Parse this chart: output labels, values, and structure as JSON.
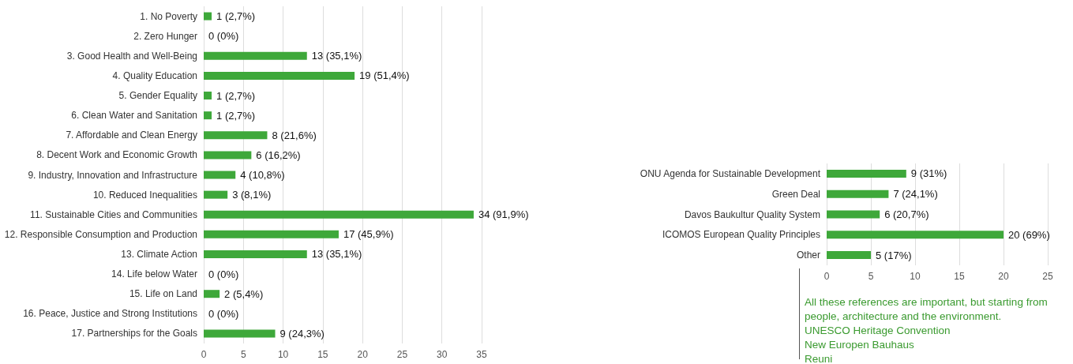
{
  "chart_data": [
    {
      "type": "bar",
      "orientation": "horizontal",
      "categories": [
        "1. No Poverty",
        "2. Zero Hunger",
        "3. Good Health and Well-Being",
        "4. Quality Education",
        "5. Gender Equality",
        "6. Clean Water and Sanitation",
        "7. Affordable and Clean Energy",
        "8. Decent Work and Economic Growth",
        "9. Industry, Innovation and Infrastructure",
        "10. Reduced Inequalities",
        "11. Sustainable Cities and Communities",
        "12. Responsible Consumption and Production",
        "13. Climate Action",
        "14. Life below Water",
        "15. Life on Land",
        "16. Peace, Justice and Strong Institutions",
        "17. Partnerships for the Goals"
      ],
      "values": [
        1,
        0,
        13,
        19,
        1,
        1,
        8,
        6,
        4,
        3,
        34,
        17,
        13,
        0,
        2,
        0,
        9
      ],
      "value_labels": [
        "1 (2,7%)",
        "0 (0%)",
        "13 (35,1%)",
        "19 (51,4%)",
        "1 (2,7%)",
        "1 (2,7%)",
        "8 (21,6%)",
        "6 (16,2%)",
        "4 (10,8%)",
        "3 (8,1%)",
        "34 (91,9%)",
        "17 (45,9%)",
        "13 (35,1%)",
        "0 (0%)",
        "2 (5,4%)",
        "0 (0%)",
        "9 (24,3%)"
      ],
      "color": "#3ea83a",
      "xlim": [
        0,
        35
      ],
      "xticks": [
        0,
        5,
        10,
        15,
        20,
        25,
        30,
        35
      ],
      "grid": "x"
    },
    {
      "type": "bar",
      "orientation": "horizontal",
      "categories": [
        "ONU Agenda for Sustainable Development",
        "Green Deal",
        "Davos Baukultur Quality System",
        "ICOMOS European Quality Principles",
        "Other"
      ],
      "values": [
        9,
        7,
        6,
        20,
        5
      ],
      "value_labels": [
        "9 (31%)",
        "7 (24,1%)",
        "6 (20,7%)",
        "20 (69%)",
        "5 (17%)"
      ],
      "color": "#3ea83a",
      "xlim": [
        0,
        25
      ],
      "xticks": [
        0,
        5,
        10,
        15,
        20,
        25
      ],
      "grid": "x",
      "annotations": [
        "All these references are important, but starting from people, architecture and the environment.",
        "UNESCO Heritage Convention",
        "New Europen Bauhaus",
        "Reuni"
      ]
    }
  ]
}
